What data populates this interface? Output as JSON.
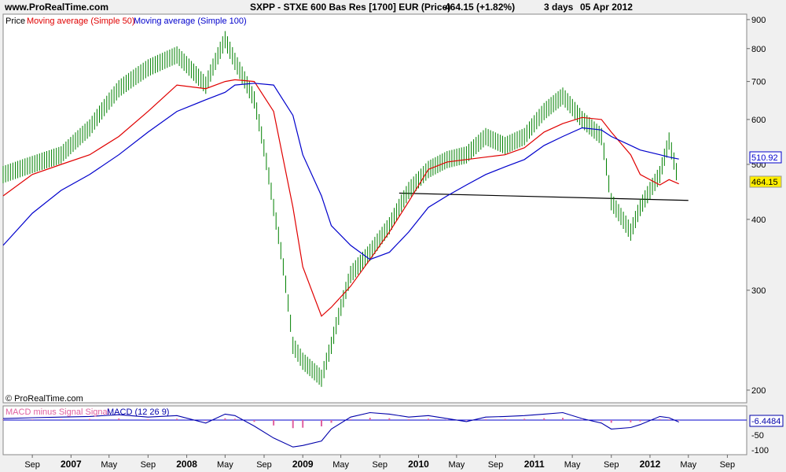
{
  "header": {
    "site": "www.ProRealTime.com",
    "instrument": "SXPP - STXE 600 Bas Res [1700] EUR (Price)",
    "last_quote": "464.15 (+1.82%)",
    "period": "3 days",
    "date": "05 Apr 2012"
  },
  "watermark": "© ProRealTime.com",
  "colors": {
    "price": "#008000",
    "ma50": "#e00000",
    "ma100": "#0000cc",
    "macd": "#0000aa",
    "signal_hist": "#e060a0",
    "support": "#000000"
  },
  "chart_data": [
    {
      "type": "line",
      "subtype": "price with moving averages (log scale)",
      "legend": [
        "Price",
        "Moving average (Simple 50)",
        "Moving average (Simple 100)"
      ],
      "y_scale": "log",
      "ylim": [
        190,
        920
      ],
      "y_ticks": [
        200,
        300,
        400,
        500,
        600,
        700,
        800,
        900
      ],
      "last_labels": {
        "ma100": "510.92",
        "price": "464.15"
      },
      "x_ticks": [
        "Sep",
        "2007",
        "May",
        "Sep",
        "2008",
        "May",
        "Sep",
        "2009",
        "May",
        "Sep",
        "2010",
        "May",
        "Sep",
        "2011",
        "May",
        "Sep",
        "2012",
        "May",
        "Sep"
      ],
      "x": [
        "2006-06",
        "2006-09",
        "2006-12",
        "2007-03",
        "2007-06",
        "2007-09",
        "2007-12",
        "2008-03",
        "2008-05",
        "2008-06",
        "2008-08",
        "2008-10",
        "2008-12",
        "2009-01",
        "2009-03",
        "2009-04",
        "2009-06",
        "2009-08",
        "2009-10",
        "2009-12",
        "2010-02",
        "2010-04",
        "2010-06",
        "2010-08",
        "2010-10",
        "2010-12",
        "2011-02",
        "2011-04",
        "2011-06",
        "2011-08",
        "2011-09",
        "2011-11",
        "2011-12",
        "2012-02",
        "2012-03",
        "2012-04"
      ],
      "series": [
        {
          "name": "Price",
          "values": [
            480,
            500,
            520,
            580,
            680,
            740,
            780,
            690,
            830,
            760,
            650,
            420,
            240,
            225,
            210,
            240,
            320,
            350,
            390,
            450,
            490,
            510,
            520,
            560,
            540,
            560,
            620,
            660,
            600,
            560,
            430,
            380,
            420,
            480,
            550,
            464.15
          ]
        },
        {
          "name": "Moving average (Simple 50)",
          "values": [
            440,
            480,
            500,
            520,
            560,
            620,
            690,
            680,
            700,
            705,
            700,
            620,
            420,
            330,
            270,
            280,
            305,
            340,
            380,
            430,
            490,
            505,
            510,
            515,
            520,
            535,
            570,
            590,
            605,
            600,
            570,
            520,
            480,
            460,
            470,
            462
          ]
        },
        {
          "name": "Moving average (Simple 100)",
          "values": [
            360,
            410,
            450,
            480,
            520,
            570,
            620,
            650,
            670,
            690,
            695,
            690,
            610,
            520,
            440,
            390,
            360,
            340,
            350,
            380,
            420,
            440,
            460,
            480,
            495,
            510,
            540,
            560,
            580,
            575,
            560,
            540,
            530,
            520,
            515,
            510.92
          ]
        }
      ],
      "annotations": [
        {
          "type": "support-line",
          "from": [
            "2009-11",
            445
          ],
          "to": [
            "2012-05",
            432
          ]
        }
      ]
    },
    {
      "type": "line",
      "subtype": "MACD indicator panel",
      "legend": [
        "MACD minus Signal Signal",
        "MACD (12 26 9)"
      ],
      "y_ticks": [
        0,
        -50,
        -100
      ],
      "y_tick_labels": [
        "",
        "-50",
        "-100"
      ],
      "last_label": "-6.4484",
      "x": [
        "2006-06",
        "2006-09",
        "2006-12",
        "2007-03",
        "2007-06",
        "2007-09",
        "2007-12",
        "2008-03",
        "2008-05",
        "2008-06",
        "2008-08",
        "2008-10",
        "2008-12",
        "2009-01",
        "2009-03",
        "2009-04",
        "2009-06",
        "2009-08",
        "2009-10",
        "2009-12",
        "2010-02",
        "2010-04",
        "2010-06",
        "2010-08",
        "2010-10",
        "2010-12",
        "2011-02",
        "2011-04",
        "2011-06",
        "2011-08",
        "2011-09",
        "2011-11",
        "2011-12",
        "2012-02",
        "2012-03",
        "2012-04"
      ],
      "series": [
        {
          "name": "MACD (12 26 9)",
          "values": [
            5,
            8,
            10,
            12,
            18,
            10,
            15,
            -10,
            20,
            15,
            -20,
            -60,
            -90,
            -85,
            -70,
            -30,
            10,
            25,
            20,
            10,
            15,
            5,
            -5,
            10,
            12,
            15,
            20,
            25,
            5,
            -10,
            -30,
            -25,
            -15,
            12,
            8,
            -6.4484
          ]
        }
      ]
    }
  ]
}
